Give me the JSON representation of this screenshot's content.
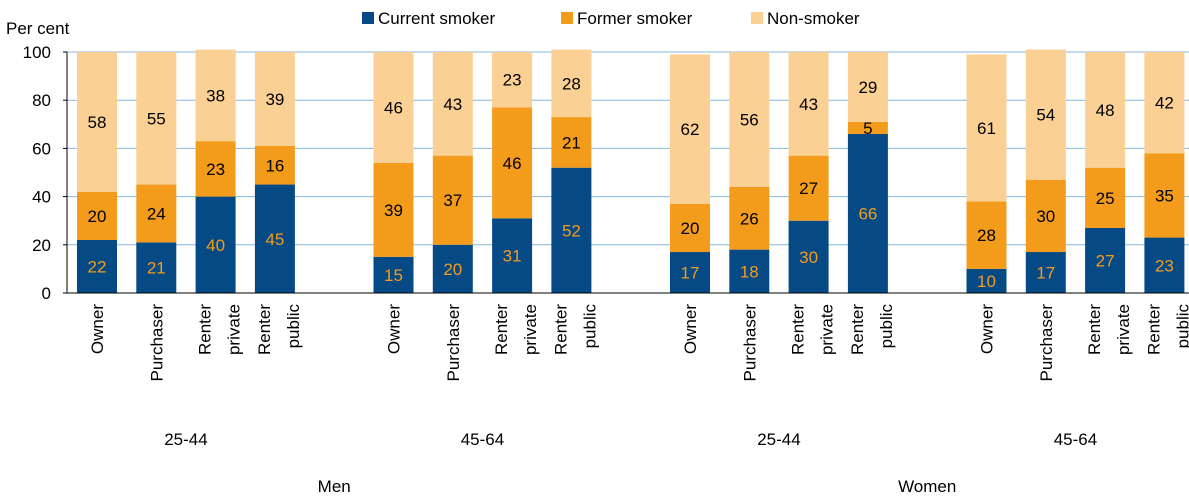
{
  "colors": {
    "current": "#064a85",
    "former": "#f39c1c",
    "non": "#fad095",
    "grid": "#86b7dc",
    "label_on_dark": "#f39c1c",
    "label_on_light": "#000000"
  },
  "chart_data": {
    "type": "bar",
    "stacked": true,
    "ylabel": "Per cent",
    "ylim": [
      0,
      100
    ],
    "yticks": [
      "0",
      "20",
      "40",
      "60",
      "80",
      "100"
    ],
    "grid": true,
    "legend_position": "top",
    "categories": [
      "Owner",
      "Purchaser",
      "Renter private",
      "Renter public",
      "Owner",
      "Purchaser",
      "Renter private",
      "Renter public",
      "Owner",
      "Purchaser",
      "Renter private",
      "Renter public",
      "Owner",
      "Purchaser",
      "Renter private",
      "Renter public"
    ],
    "tenure_labels": [
      [
        "Owner"
      ],
      [
        "Purchaser"
      ],
      [
        "Renter",
        "private"
      ],
      [
        "Renter",
        "public"
      ],
      [
        "Owner"
      ],
      [
        "Purchaser"
      ],
      [
        "Renter",
        "private"
      ],
      [
        "Renter",
        "public"
      ],
      [
        "Owner"
      ],
      [
        "Purchaser"
      ],
      [
        "Renter",
        "private"
      ],
      [
        "Renter",
        "public"
      ],
      [
        "Owner"
      ],
      [
        "Purchaser"
      ],
      [
        "Renter",
        "private"
      ],
      [
        "Renter",
        "public"
      ]
    ],
    "age_groups": [
      "25-44",
      "45-64",
      "25-44",
      "45-64"
    ],
    "sex_groups": [
      "Men",
      "Women"
    ],
    "series": [
      {
        "name": "Current smoker",
        "values": [
          22,
          21,
          40,
          45,
          15,
          20,
          31,
          52,
          17,
          18,
          30,
          66,
          10,
          17,
          27,
          23
        ]
      },
      {
        "name": "Former smoker",
        "values": [
          20,
          24,
          23,
          16,
          39,
          37,
          46,
          21,
          20,
          26,
          27,
          5,
          28,
          30,
          25,
          35
        ]
      },
      {
        "name": "Non-smoker",
        "values": [
          58,
          55,
          38,
          39,
          46,
          43,
          23,
          28,
          62,
          56,
          43,
          29,
          61,
          54,
          48,
          42
        ]
      }
    ]
  }
}
